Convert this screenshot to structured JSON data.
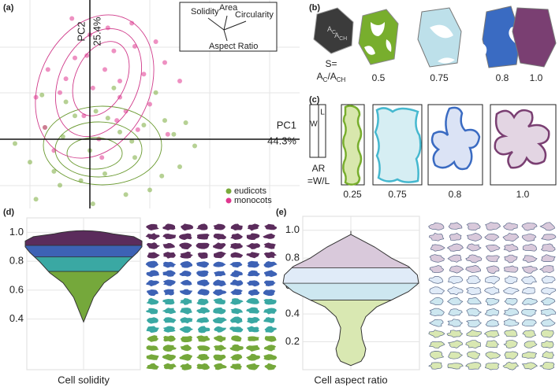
{
  "panel_a": {
    "label": "(a)",
    "type": "scatter",
    "x_label": "PC1",
    "x_label_value": "44.3%",
    "y_label": "PC2",
    "y_label_value": "25.4%",
    "xlim": [
      -3,
      7
    ],
    "ylim": [
      -3,
      6
    ],
    "loadings": [
      "Solidity",
      "Area",
      "Circularity",
      "Aspect Ratio"
    ],
    "series": [
      {
        "name": "eudicots",
        "color": "#7aab3c",
        "x": [
          -2,
          -1.5,
          -1,
          -0.5,
          0,
          0.5,
          1,
          1.5,
          2,
          2.5,
          3,
          3.5,
          -1.8,
          -0.8,
          0.2,
          1.2,
          2.2,
          -2.5,
          -1.2,
          0.8,
          1.8,
          2.8,
          -0.3,
          0.6,
          1.4,
          -1.6,
          2.4,
          3.2,
          0.1,
          -0.9
        ],
        "y": [
          -1,
          0.5,
          -2,
          1,
          -0.5,
          -1.5,
          0.3,
          -0.8,
          -2.2,
          0.8,
          -1.2,
          -0.3,
          -2.6,
          1.6,
          1.2,
          -2.4,
          2,
          -0.2,
          -1.4,
          2.2,
          0.6,
          0.2,
          -1.8,
          0.9,
          -0.1,
          1.9,
          -1.6,
          0.7,
          -2.8,
          0.1
        ]
      },
      {
        "name": "monocots",
        "color": "#e0368f",
        "x": [
          -1.5,
          -1,
          -0.5,
          0,
          0.5,
          1,
          1.5,
          2,
          -1.2,
          -0.2,
          0.8,
          1.8,
          2.5,
          -0.8,
          0.3,
          1.2,
          -1.8,
          0.6,
          1.6,
          2.2,
          -0.6,
          0.1,
          1,
          3,
          -1.4,
          0.4,
          1.4,
          2.6,
          -0.1,
          0.9
        ],
        "y": [
          0.5,
          2,
          3.5,
          4.5,
          3,
          2.5,
          4,
          1.5,
          -0.5,
          1,
          3.8,
          2.8,
          3.3,
          2.6,
          0,
          1.2,
          1.8,
          4.8,
          0.4,
          4.2,
          5.2,
          2.2,
          1.8,
          2.5,
          3,
          -0.8,
          5,
          0.2,
          3.6,
          0.8
        ]
      }
    ]
  },
  "panel_b": {
    "label": "(b)",
    "inner_labels": [
      "A",
      "C",
      "A",
      "CH"
    ],
    "formula": [
      "S=",
      "A",
      "C",
      "/A",
      "CH"
    ],
    "values": [
      "0.5",
      "0.75",
      "0.8",
      "1.0"
    ]
  },
  "panel_c": {
    "label": "(c)",
    "box_labels": [
      "L",
      "W"
    ],
    "formula": [
      "AR",
      "=W/L"
    ],
    "values": [
      "0.25",
      "0.75",
      "0.8",
      "1.0"
    ]
  },
  "panel_d": {
    "label": "(d)",
    "type": "violin",
    "x_label": "Cell solidity",
    "ylim": [
      0.05,
      1.1
    ],
    "yticks": [
      0.4,
      0.6,
      0.8,
      {
        "value": 1,
        "label": "1.0"
      }
    ],
    "profile": {
      "y": [
        0.38,
        0.45,
        0.55,
        0.65,
        0.72,
        0.8,
        0.86,
        0.9,
        0.94,
        0.97,
        0.99
      ],
      "density": [
        0,
        0.07,
        0.17,
        0.35,
        0.58,
        0.76,
        0.92,
        1,
        1,
        0.86,
        0.5
      ]
    },
    "bands": [
      {
        "from": 0.38,
        "to": 0.73,
        "color": "#75a83b"
      },
      {
        "from": 0.73,
        "to": 0.83,
        "color": "#3aa8a3"
      },
      {
        "from": 0.83,
        "to": 0.91,
        "color": "#3d62b5"
      },
      {
        "from": 0.91,
        "to": 0.99,
        "color": "#5b2c5c"
      }
    ]
  },
  "panel_e": {
    "label": "(e)",
    "type": "violin",
    "x_label": "Cell aspect ratio",
    "ylim": [
      0,
      1.1
    ],
    "yticks": [
      0.2,
      0.4,
      0.6,
      0.8,
      {
        "value": 1,
        "label": "1.0"
      }
    ],
    "profile": {
      "y": [
        0.03,
        0.06,
        0.1,
        0.15,
        0.22,
        0.3,
        0.38,
        0.45,
        0.5,
        0.56,
        0.62,
        0.68,
        0.74,
        0.8,
        0.88,
        0.97
      ],
      "density": [
        0,
        0.15,
        0.2,
        0.22,
        0.17,
        0.15,
        0.22,
        0.38,
        0.6,
        0.85,
        1,
        0.98,
        0.85,
        0.6,
        0.35,
        0
      ]
    },
    "bands": [
      {
        "from": 0.03,
        "to": 0.5,
        "color": "#d9e8b2"
      },
      {
        "from": 0.5,
        "to": 0.62,
        "color": "#cde7f0"
      },
      {
        "from": 0.62,
        "to": 0.73,
        "color": "#e0ebf8"
      },
      {
        "from": 0.73,
        "to": 0.97,
        "color": "#d9c9db"
      }
    ]
  }
}
